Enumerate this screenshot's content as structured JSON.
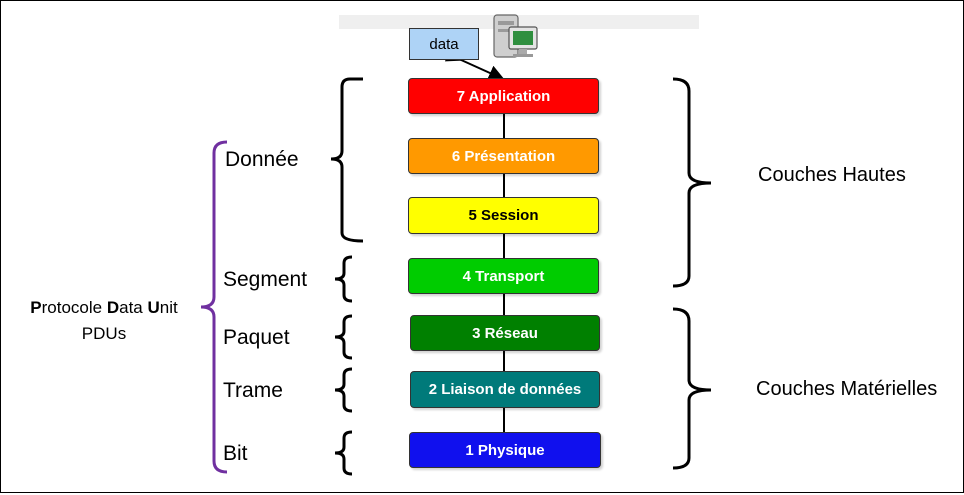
{
  "data_box": {
    "label": "data"
  },
  "layers": [
    {
      "label": "7 Application",
      "color": "#ff0000",
      "text_color": "#ffffff"
    },
    {
      "label": "6 Présentation",
      "color": "#ff9900",
      "text_color": "#ffffff"
    },
    {
      "label": "5 Session",
      "color": "#ffff00",
      "text_color": "#000000"
    },
    {
      "label": "4 Transport",
      "color": "#00cc00",
      "text_color": "#ffffff"
    },
    {
      "label": "3 Réseau",
      "color": "#008000",
      "text_color": "#ffffff"
    },
    {
      "label": "2 Liaison de données",
      "color": "#007a7a",
      "text_color": "#ffffff"
    },
    {
      "label": "1 Physique",
      "color": "#1010ee",
      "text_color": "#ffffff"
    }
  ],
  "pdus": [
    "Donnée",
    "Segment",
    "Paquet",
    "Trame",
    "Bit"
  ],
  "pdu_title": {
    "line1_parts": [
      {
        "text": "P",
        "bold": true
      },
      {
        "text": "rotocole ",
        "bold": false
      },
      {
        "text": "D",
        "bold": true
      },
      {
        "text": "ata ",
        "bold": false
      },
      {
        "text": "U",
        "bold": true
      },
      {
        "text": "nit",
        "bold": false
      }
    ],
    "line2": "PDUs"
  },
  "groups": {
    "upper": "Couches Hautes",
    "lower": "Couches Matérielles"
  },
  "colors": {
    "bracket": "#000000",
    "pdu_bracket": "#7030a0"
  },
  "icons": [
    "computer-icon"
  ]
}
